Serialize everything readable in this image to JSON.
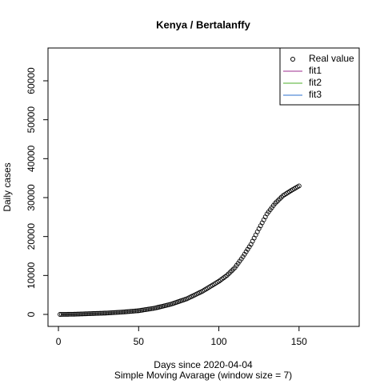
{
  "chart_data": {
    "type": "scatter",
    "title": "Kenya / Bertalanffy",
    "xlabel": "Days since 2020-04-04",
    "subtitle": "Simple Moving Avarage (window size = 7)",
    "ylabel": "Daily cases",
    "xlim": [
      -6.5,
      187.5
    ],
    "ylim": [
      -3082,
      68425
    ],
    "xticks": [
      0,
      50,
      100,
      150
    ],
    "yticks": [
      0,
      10000,
      20000,
      30000,
      40000,
      50000,
      60000
    ],
    "legend_position": "topright",
    "series": [
      {
        "name": "Real value",
        "color": "#000000",
        "x": [
          1,
          2,
          3,
          4,
          5,
          6,
          7,
          8,
          9,
          10,
          11,
          12,
          13,
          14,
          15,
          16,
          17,
          18,
          19,
          20,
          21,
          22,
          23,
          24,
          25,
          26,
          27,
          28,
          29,
          30,
          31,
          32,
          33,
          34,
          35,
          36,
          37,
          38,
          39,
          40,
          41,
          42,
          43,
          44,
          45,
          46,
          47,
          48,
          49,
          50,
          51,
          52,
          53,
          54,
          55,
          56,
          57,
          58,
          59,
          60,
          61,
          62,
          63,
          64,
          65,
          66,
          67,
          68,
          69,
          70,
          71,
          72,
          73,
          74,
          75,
          76,
          77,
          78,
          79,
          80,
          81,
          82,
          83,
          84,
          85,
          86,
          87,
          88,
          89,
          90,
          91,
          92,
          93,
          94,
          95,
          96,
          97,
          98,
          99,
          100,
          101,
          102,
          103,
          104,
          105,
          106,
          107,
          108,
          109,
          110,
          111,
          112,
          113,
          114,
          115,
          116,
          117,
          118,
          119,
          120,
          121,
          122,
          123,
          124,
          125,
          126,
          127,
          128,
          129,
          130,
          131,
          132,
          133,
          134,
          135,
          136,
          137,
          138,
          139,
          140,
          141,
          142,
          143,
          144,
          145,
          146,
          147,
          148,
          149,
          150
        ],
        "values": [
          0,
          5,
          11,
          16,
          22,
          27,
          33,
          38,
          44,
          50,
          65,
          80,
          95,
          110,
          125,
          140,
          155,
          170,
          185,
          200,
          215,
          230,
          245,
          260,
          275,
          290,
          305,
          320,
          335,
          350,
          375,
          400,
          425,
          450,
          475,
          500,
          525,
          550,
          575,
          600,
          635,
          670,
          705,
          740,
          775,
          810,
          845,
          880,
          915,
          950,
          1015,
          1080,
          1145,
          1210,
          1275,
          1340,
          1405,
          1470,
          1535,
          1600,
          1700,
          1800,
          1900,
          2000,
          2100,
          2200,
          2300,
          2400,
          2500,
          2600,
          2740,
          2880,
          3020,
          3160,
          3300,
          3440,
          3580,
          3720,
          3860,
          4000,
          4200,
          4400,
          4600,
          4800,
          5000,
          5200,
          5400,
          5600,
          5800,
          6000,
          6250,
          6500,
          6750,
          7000,
          7250,
          7500,
          7750,
          8000,
          8250,
          8500,
          8800,
          9100,
          9400,
          9700,
          10000,
          10400,
          10800,
          11200,
          11600,
          12000,
          12560,
          13120,
          13680,
          14240,
          14800,
          15440,
          16080,
          16720,
          17360,
          18000,
          18800,
          19600,
          20400,
          21200,
          22000,
          22760,
          23520,
          24280,
          25040,
          25800,
          26340,
          26880,
          27420,
          27960,
          28500,
          28900,
          29300,
          29700,
          30100,
          30500,
          30760,
          31020,
          31280,
          31540,
          31800,
          32040,
          32280,
          32520,
          32760,
          33000
        ]
      },
      {
        "name": "fit1",
        "color": "#9e2d8f"
      },
      {
        "name": "fit2",
        "color": "#4daf2a"
      },
      {
        "name": "fit3",
        "color": "#2b6fcf"
      }
    ]
  }
}
